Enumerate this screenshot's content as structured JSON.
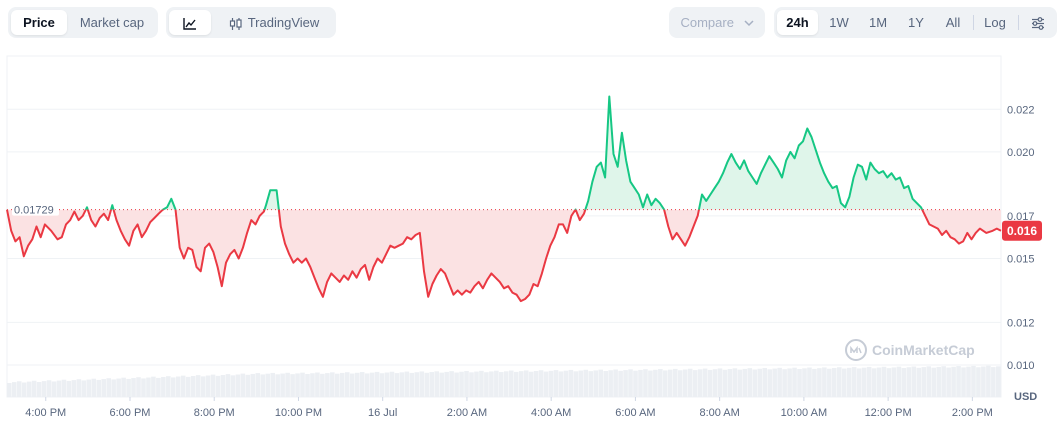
{
  "toolbar": {
    "type_tabs": [
      {
        "label": "Price",
        "active": true
      },
      {
        "label": "Market cap",
        "active": false
      }
    ],
    "view_buttons": {
      "line_icon": "line-chart-icon",
      "tradingview_icon": "candlestick-icon",
      "tradingview_label": "TradingView"
    },
    "compare": {
      "label": "Compare",
      "icon": "chevron-down-icon"
    },
    "ranges": [
      {
        "label": "24h",
        "active": true
      },
      {
        "label": "1W",
        "active": false
      },
      {
        "label": "1M",
        "active": false
      },
      {
        "label": "1Y",
        "active": false
      },
      {
        "label": "All",
        "active": false
      }
    ],
    "log_label": "Log",
    "settings_icon": "sliders-icon"
  },
  "chart_data": {
    "type": "area",
    "series_kind": "line with baseline fill",
    "baseline_value": 0.01729,
    "baseline_label": "0.01729",
    "current_value_label": "0.016",
    "ylim": [
      0.0085,
      0.0245
    ],
    "y_ticks": [
      0.01,
      0.012,
      0.015,
      0.017,
      0.02,
      0.022
    ],
    "y_tick_labels": [
      "0.010",
      "0.012",
      "0.015",
      "0.017",
      "0.020",
      "0.022"
    ],
    "y_unit_label": "USD",
    "x_tick_labels": [
      "4:00 PM",
      "6:00 PM",
      "8:00 PM",
      "10:00 PM",
      "16 Jul",
      "2:00 AM",
      "4:00 AM",
      "6:00 AM",
      "8:00 AM",
      "10:00 AM",
      "12:00 PM",
      "2:00 PM"
    ],
    "x_hours": [
      -5.08,
      -3.08,
      -1.08,
      0.92,
      2.92,
      4.92,
      6.92,
      8.92,
      10.92,
      12.92,
      14.92,
      16.92
    ],
    "x_range_hours": [
      -6.0,
      17.6
    ],
    "colors": {
      "above": "#16c784",
      "below": "#ea3943",
      "above_fill": "#dff5ea",
      "below_fill": "#fbe2e3",
      "volume": "#eceff3"
    },
    "grid": true,
    "watermark": "CoinMarketCap",
    "price": [
      [
        -6.0,
        0.01729
      ],
      [
        -5.9,
        0.0163
      ],
      [
        -5.8,
        0.0158
      ],
      [
        -5.7,
        0.016
      ],
      [
        -5.6,
        0.0151
      ],
      [
        -5.5,
        0.0156
      ],
      [
        -5.4,
        0.0159
      ],
      [
        -5.3,
        0.0165
      ],
      [
        -5.2,
        0.016
      ],
      [
        -5.1,
        0.0166
      ],
      [
        -4.95,
        0.0163
      ],
      [
        -4.8,
        0.0159
      ],
      [
        -4.7,
        0.016
      ],
      [
        -4.6,
        0.0166
      ],
      [
        -4.5,
        0.0168
      ],
      [
        -4.4,
        0.0172
      ],
      [
        -4.3,
        0.0168
      ],
      [
        -4.2,
        0.017
      ],
      [
        -4.1,
        0.0174
      ],
      [
        -4.0,
        0.0168
      ],
      [
        -3.9,
        0.0165
      ],
      [
        -3.8,
        0.0169
      ],
      [
        -3.7,
        0.0171
      ],
      [
        -3.6,
        0.0168
      ],
      [
        -3.5,
        0.0175
      ],
      [
        -3.4,
        0.0168
      ],
      [
        -3.3,
        0.0163
      ],
      [
        -3.2,
        0.0159
      ],
      [
        -3.1,
        0.0156
      ],
      [
        -3.0,
        0.0163
      ],
      [
        -2.9,
        0.0166
      ],
      [
        -2.8,
        0.016
      ],
      [
        -2.7,
        0.0163
      ],
      [
        -2.6,
        0.0167
      ],
      [
        -2.5,
        0.0169
      ],
      [
        -2.4,
        0.0171
      ],
      [
        -2.3,
        0.01729
      ],
      [
        -2.2,
        0.0174
      ],
      [
        -2.1,
        0.0178
      ],
      [
        -2.0,
        0.0173
      ],
      [
        -1.9,
        0.0155
      ],
      [
        -1.8,
        0.015
      ],
      [
        -1.7,
        0.0155
      ],
      [
        -1.6,
        0.0154
      ],
      [
        -1.5,
        0.0146
      ],
      [
        -1.4,
        0.0144
      ],
      [
        -1.3,
        0.0155
      ],
      [
        -1.2,
        0.0157
      ],
      [
        -1.1,
        0.0153
      ],
      [
        -1.0,
        0.0146
      ],
      [
        -0.9,
        0.0137
      ],
      [
        -0.8,
        0.0148
      ],
      [
        -0.7,
        0.0152
      ],
      [
        -0.6,
        0.0154
      ],
      [
        -0.5,
        0.015
      ],
      [
        -0.4,
        0.0155
      ],
      [
        -0.3,
        0.0162
      ],
      [
        -0.2,
        0.0168
      ],
      [
        -0.1,
        0.0166
      ],
      [
        0.0,
        0.017
      ],
      [
        0.1,
        0.0172
      ],
      [
        0.15,
        0.0175
      ],
      [
        0.25,
        0.0182
      ],
      [
        0.4,
        0.0182
      ],
      [
        0.5,
        0.0165
      ],
      [
        0.6,
        0.0157
      ],
      [
        0.7,
        0.0152
      ],
      [
        0.8,
        0.0148
      ],
      [
        0.9,
        0.015
      ],
      [
        1.0,
        0.0148
      ],
      [
        1.1,
        0.015
      ],
      [
        1.2,
        0.0146
      ],
      [
        1.3,
        0.0141
      ],
      [
        1.4,
        0.0136
      ],
      [
        1.5,
        0.0132
      ],
      [
        1.6,
        0.0139
      ],
      [
        1.7,
        0.0143
      ],
      [
        1.8,
        0.0141
      ],
      [
        1.9,
        0.0139
      ],
      [
        2.0,
        0.0142
      ],
      [
        2.1,
        0.014
      ],
      [
        2.2,
        0.0144
      ],
      [
        2.3,
        0.0141
      ],
      [
        2.4,
        0.0145
      ],
      [
        2.5,
        0.0147
      ],
      [
        2.6,
        0.014
      ],
      [
        2.7,
        0.0146
      ],
      [
        2.8,
        0.015
      ],
      [
        2.9,
        0.0148
      ],
      [
        3.0,
        0.0152
      ],
      [
        3.1,
        0.0156
      ],
      [
        3.2,
        0.0155
      ],
      [
        3.3,
        0.0156
      ],
      [
        3.4,
        0.0157
      ],
      [
        3.5,
        0.016
      ],
      [
        3.6,
        0.0159
      ],
      [
        3.7,
        0.0161
      ],
      [
        3.8,
        0.0162
      ],
      [
        3.9,
        0.0144
      ],
      [
        4.0,
        0.0132
      ],
      [
        4.1,
        0.0138
      ],
      [
        4.2,
        0.0142
      ],
      [
        4.3,
        0.0145
      ],
      [
        4.4,
        0.0143
      ],
      [
        4.5,
        0.0138
      ],
      [
        4.6,
        0.0133
      ],
      [
        4.7,
        0.0135
      ],
      [
        4.8,
        0.0133
      ],
      [
        4.9,
        0.0135
      ],
      [
        5.0,
        0.0134
      ],
      [
        5.1,
        0.0137
      ],
      [
        5.2,
        0.0139
      ],
      [
        5.3,
        0.0136
      ],
      [
        5.4,
        0.014
      ],
      [
        5.5,
        0.0143
      ],
      [
        5.6,
        0.0141
      ],
      [
        5.7,
        0.0139
      ],
      [
        5.8,
        0.0136
      ],
      [
        5.9,
        0.0137
      ],
      [
        6.0,
        0.0134
      ],
      [
        6.1,
        0.0133
      ],
      [
        6.2,
        0.013
      ],
      [
        6.3,
        0.0131
      ],
      [
        6.4,
        0.0133
      ],
      [
        6.5,
        0.0138
      ],
      [
        6.6,
        0.0137
      ],
      [
        6.7,
        0.0143
      ],
      [
        6.8,
        0.015
      ],
      [
        6.9,
        0.0156
      ],
      [
        7.0,
        0.016
      ],
      [
        7.1,
        0.0166
      ],
      [
        7.2,
        0.0166
      ],
      [
        7.3,
        0.0162
      ],
      [
        7.4,
        0.017
      ],
      [
        7.5,
        0.0173
      ],
      [
        7.6,
        0.0168
      ],
      [
        7.7,
        0.0171
      ],
      [
        7.8,
        0.0177
      ],
      [
        7.9,
        0.0186
      ],
      [
        8.0,
        0.0193
      ],
      [
        8.1,
        0.0195
      ],
      [
        8.2,
        0.0188
      ],
      [
        8.3,
        0.0226
      ],
      [
        8.4,
        0.0199
      ],
      [
        8.5,
        0.0193
      ],
      [
        8.6,
        0.0209
      ],
      [
        8.7,
        0.0196
      ],
      [
        8.8,
        0.0186
      ],
      [
        8.9,
        0.0183
      ],
      [
        9.0,
        0.018
      ],
      [
        9.1,
        0.0174
      ],
      [
        9.2,
        0.018
      ],
      [
        9.3,
        0.0175
      ],
      [
        9.4,
        0.0178
      ],
      [
        9.5,
        0.0176
      ],
      [
        9.6,
        0.0173
      ],
      [
        9.7,
        0.0165
      ],
      [
        9.8,
        0.0159
      ],
      [
        9.9,
        0.0162
      ],
      [
        10.0,
        0.0159
      ],
      [
        10.1,
        0.0156
      ],
      [
        10.2,
        0.016
      ],
      [
        10.3,
        0.0165
      ],
      [
        10.4,
        0.017
      ],
      [
        10.5,
        0.018
      ],
      [
        10.6,
        0.0177
      ],
      [
        10.7,
        0.018
      ],
      [
        10.8,
        0.0183
      ],
      [
        10.9,
        0.0186
      ],
      [
        11.0,
        0.019
      ],
      [
        11.1,
        0.0195
      ],
      [
        11.2,
        0.0199
      ],
      [
        11.3,
        0.0195
      ],
      [
        11.4,
        0.0192
      ],
      [
        11.5,
        0.0196
      ],
      [
        11.6,
        0.0191
      ],
      [
        11.7,
        0.0188
      ],
      [
        11.8,
        0.0185
      ],
      [
        11.9,
        0.019
      ],
      [
        12.0,
        0.0194
      ],
      [
        12.1,
        0.0198
      ],
      [
        12.2,
        0.0195
      ],
      [
        12.3,
        0.0192
      ],
      [
        12.4,
        0.0188
      ],
      [
        12.5,
        0.0196
      ],
      [
        12.6,
        0.02
      ],
      [
        12.7,
        0.0197
      ],
      [
        12.8,
        0.0203
      ],
      [
        12.9,
        0.0205
      ],
      [
        13.0,
        0.0211
      ],
      [
        13.1,
        0.0207
      ],
      [
        13.2,
        0.0201
      ],
      [
        13.3,
        0.0195
      ],
      [
        13.4,
        0.019
      ],
      [
        13.5,
        0.0186
      ],
      [
        13.6,
        0.0183
      ],
      [
        13.7,
        0.0184
      ],
      [
        13.8,
        0.0176
      ],
      [
        13.9,
        0.0174
      ],
      [
        14.0,
        0.0179
      ],
      [
        14.1,
        0.0188
      ],
      [
        14.2,
        0.0194
      ],
      [
        14.3,
        0.0193
      ],
      [
        14.4,
        0.0187
      ],
      [
        14.5,
        0.0195
      ],
      [
        14.6,
        0.0192
      ],
      [
        14.7,
        0.019
      ],
      [
        14.8,
        0.0191
      ],
      [
        14.9,
        0.0188
      ],
      [
        15.0,
        0.019
      ],
      [
        15.1,
        0.0187
      ],
      [
        15.2,
        0.0188
      ],
      [
        15.3,
        0.0183
      ],
      [
        15.4,
        0.0184
      ],
      [
        15.5,
        0.0178
      ],
      [
        15.6,
        0.0176
      ],
      [
        15.7,
        0.0174
      ],
      [
        15.8,
        0.017
      ],
      [
        15.9,
        0.0166
      ],
      [
        16.0,
        0.0165
      ],
      [
        16.1,
        0.0164
      ],
      [
        16.2,
        0.0161
      ],
      [
        16.3,
        0.0163
      ],
      [
        16.4,
        0.016
      ],
      [
        16.5,
        0.0159
      ],
      [
        16.6,
        0.0157
      ],
      [
        16.7,
        0.0158
      ],
      [
        16.8,
        0.0162
      ],
      [
        16.9,
        0.0159
      ],
      [
        17.0,
        0.0162
      ],
      [
        17.1,
        0.0164
      ],
      [
        17.25,
        0.0162
      ],
      [
        17.4,
        0.0163
      ],
      [
        17.5,
        0.0164
      ],
      [
        17.6,
        0.0163
      ]
    ]
  }
}
